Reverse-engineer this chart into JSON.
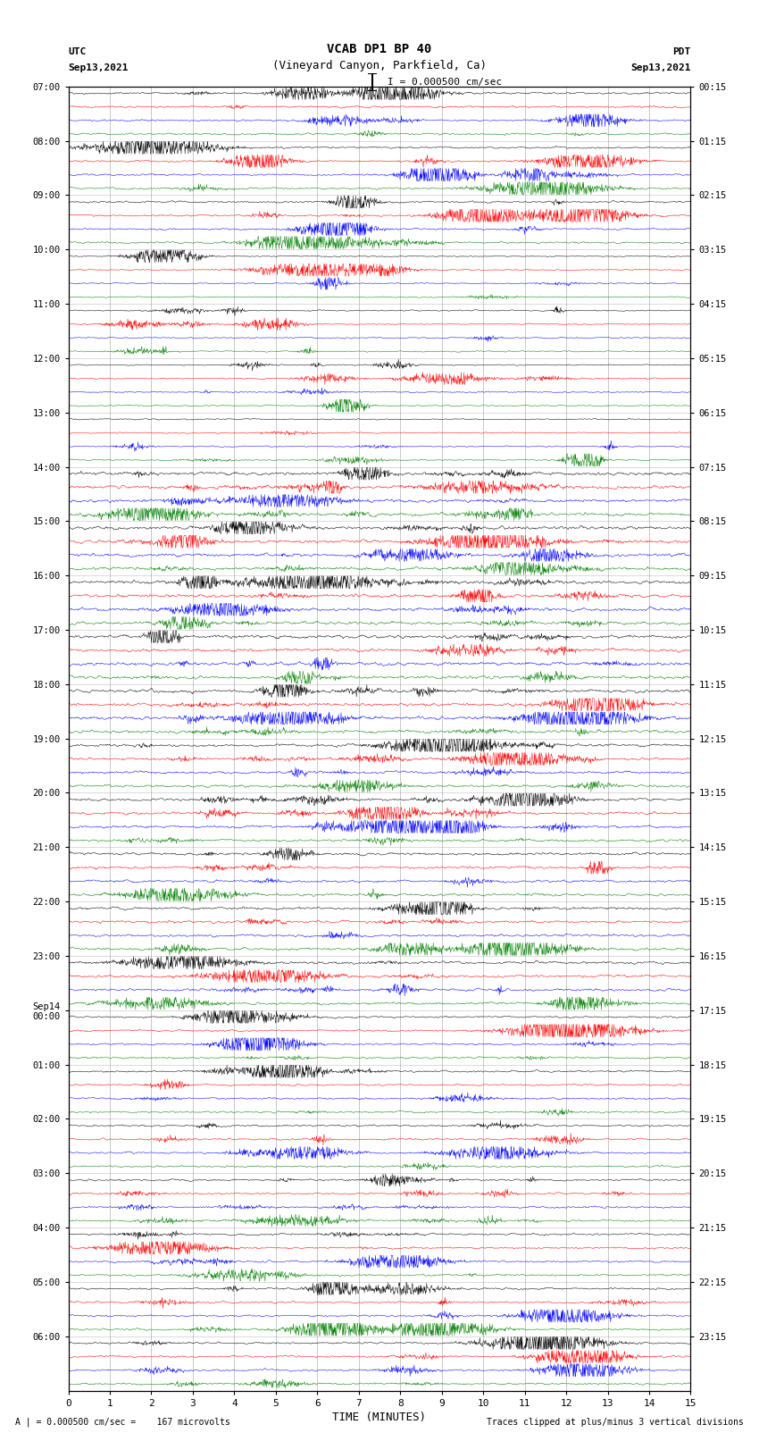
{
  "title_line1": "VCAB DP1 BP 40",
  "title_line2": "(Vineyard Canyon, Parkfield, Ca)",
  "scale_label": "I = 0.000500 cm/sec",
  "left_label_top": "UTC",
  "left_label_date": "Sep13,2021",
  "right_label_top": "PDT",
  "right_label_date": "Sep13,2021",
  "bottom_label": "TIME (MINUTES)",
  "bottom_note_left": "A | = 0.000500 cm/sec =    167 microvolts",
  "bottom_note_right": "Traces clipped at plus/minus 3 vertical divisions",
  "xlabel_ticks": [
    0,
    1,
    2,
    3,
    4,
    5,
    6,
    7,
    8,
    9,
    10,
    11,
    12,
    13,
    14,
    15
  ],
  "utc_labels": [
    "07:00",
    "08:00",
    "09:00",
    "10:00",
    "11:00",
    "12:00",
    "13:00",
    "14:00",
    "15:00",
    "16:00",
    "17:00",
    "18:00",
    "19:00",
    "20:00",
    "21:00",
    "22:00",
    "23:00",
    "Sep14\n00:00",
    "01:00",
    "02:00",
    "03:00",
    "04:00",
    "05:00",
    "06:00"
  ],
  "pdt_labels": [
    "00:15",
    "01:15",
    "02:15",
    "03:15",
    "04:15",
    "05:15",
    "06:15",
    "07:15",
    "08:15",
    "09:15",
    "10:15",
    "11:15",
    "12:15",
    "13:15",
    "14:15",
    "15:15",
    "16:15",
    "17:15",
    "18:15",
    "19:15",
    "20:15",
    "21:15",
    "22:15",
    "23:15"
  ],
  "n_hours": 24,
  "traces_per_hour": 4,
  "colors": [
    "black",
    "red",
    "blue",
    "green"
  ],
  "bg_color": "white",
  "fig_width": 8.5,
  "fig_height": 16.13,
  "dpi": 100,
  "seed": 42,
  "vertical_lines_minutes": [
    1,
    2,
    3,
    4,
    5,
    6,
    7,
    8,
    9,
    10,
    11,
    12,
    13,
    14
  ]
}
